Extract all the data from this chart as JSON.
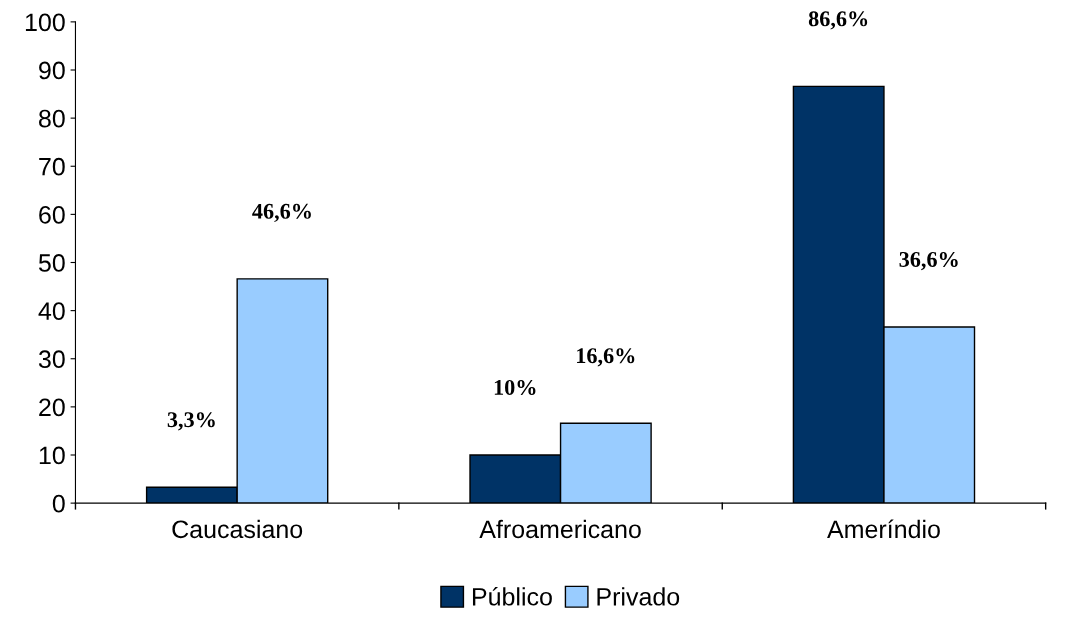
{
  "chart_data": {
    "type": "bar",
    "categories": [
      "Caucasiano",
      "Afroamericano",
      "Ameríndio"
    ],
    "series": [
      {
        "name": "Público",
        "color": "#003366",
        "values": [
          3.3,
          10,
          86.6
        ],
        "value_labels": [
          "3,3%",
          "10%",
          "86,6%"
        ]
      },
      {
        "name": "Privado",
        "color": "#99ccff",
        "values": [
          46.6,
          16.6,
          36.6
        ],
        "value_labels": [
          "46,6%",
          "16,6%",
          "36,6%"
        ]
      }
    ],
    "ylim": [
      0,
      100
    ],
    "yticks": [
      0,
      10,
      20,
      30,
      40,
      50,
      60,
      70,
      80,
      90,
      100
    ],
    "grid": false,
    "legend": "bottom"
  }
}
